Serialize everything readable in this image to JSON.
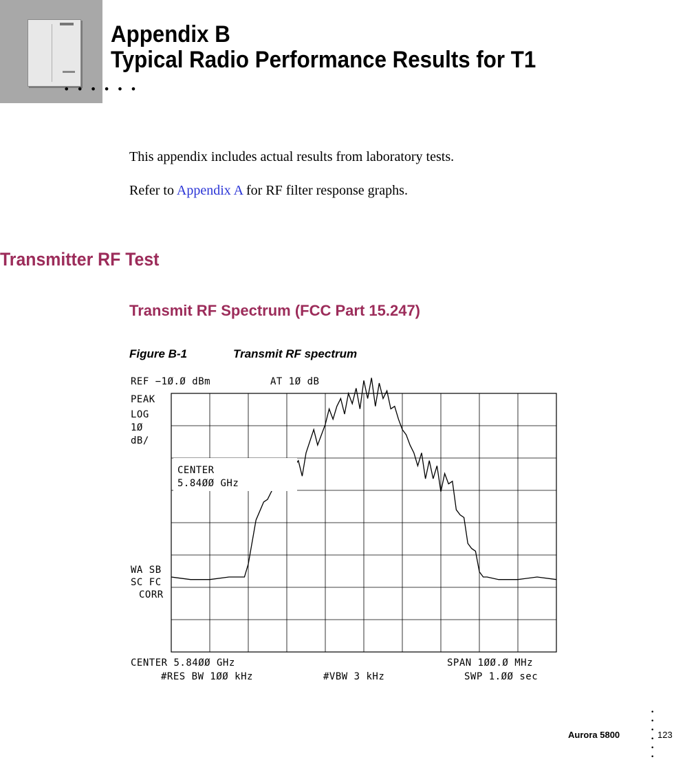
{
  "chapter": {
    "label": "Appendix B",
    "title": "Typical Radio Performance Results for T1"
  },
  "intro": {
    "line1": "This appendix includes actual results from laboratory tests.",
    "refer_prefix": "Refer to ",
    "refer_link": "Appendix A",
    "refer_suffix": " for RF filter response graphs."
  },
  "section": {
    "title": "Transmitter RF Test"
  },
  "subsection": {
    "title": "Transmit RF Spectrum (FCC Part 15.247)"
  },
  "figure": {
    "number": "Figure B-1",
    "caption": "Transmit RF spectrum"
  },
  "chart_data": {
    "type": "line",
    "instrument": {
      "ref": "REF −1Ø.Ø dBm",
      "atten": "AT 1Ø dB",
      "mode": "PEAK",
      "scale_type": "LOG",
      "scale_value": "1Ø",
      "scale_unit": "dB/",
      "center_label": "CENTER",
      "center_value": "5.84ØØ GHz",
      "status1": "WA SB",
      "status2": "SC FC",
      "status3": "CORR",
      "bottom_center": "CENTER 5.84ØØ GHz",
      "span": "SPAN 1ØØ.Ø MHz",
      "res_bw": "#RES BW 1ØØ kHz",
      "vbw": "#VBW 3 kHz",
      "sweep": "SWP 1.ØØ  sec"
    },
    "x_unit": "MHz offset from center",
    "y_unit": "dBm",
    "xlim": [
      -50,
      50
    ],
    "ylim": [
      -110,
      -10
    ],
    "grid": true,
    "x": [
      -50,
      -45,
      -40,
      -35,
      -31,
      -30,
      -28,
      -26,
      -25,
      -23,
      -22,
      -20,
      -19,
      -17,
      -16,
      -15,
      -13,
      -12,
      -10,
      -9,
      -8,
      -7,
      -6,
      -5,
      -4,
      -3,
      -2,
      -1,
      0,
      1,
      2,
      3,
      4,
      5,
      6,
      7,
      8,
      9,
      10,
      11,
      12,
      13,
      14,
      15,
      16,
      17,
      18,
      19,
      20,
      21,
      22,
      23,
      24,
      25,
      26,
      27,
      28,
      29,
      30,
      31,
      32,
      35,
      40,
      45,
      50
    ],
    "y": [
      -81,
      -82,
      -82,
      -81,
      -81,
      -76,
      -59,
      -52,
      -51,
      -45,
      -43,
      -42,
      -40,
      -36,
      -42,
      -33,
      -24,
      -30,
      -22,
      -16,
      -20,
      -15,
      -12,
      -18,
      -10,
      -14,
      -8,
      -16,
      -5,
      -12,
      -4,
      -15,
      -6,
      -12,
      -9,
      -16,
      -15,
      -20,
      -24,
      -26,
      -30,
      -33,
      -38,
      -33,
      -43,
      -36,
      -43,
      -38,
      -48,
      -41,
      -45,
      -44,
      -55,
      -57,
      -58,
      -68,
      -70,
      -71,
      -79,
      -81,
      -81,
      -82,
      -82,
      -81,
      -82
    ]
  },
  "footer": {
    "product": "Aurora 5800",
    "page": "123"
  }
}
